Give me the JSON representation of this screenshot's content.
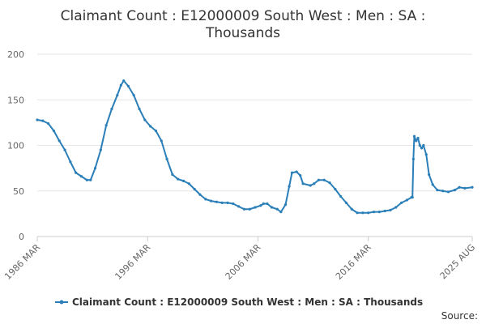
{
  "chart_data": {
    "type": "line",
    "title_lines": [
      "Claimant Count : E12000009 South West : Men : SA :",
      "Thousands"
    ],
    "ylim": [
      0,
      200
    ],
    "yticks": [
      0,
      50,
      100,
      150,
      200
    ],
    "x_range": [
      "1986-03",
      "2025-08"
    ],
    "xticks": [
      {
        "date": "1986-03",
        "label": "1986 MAR"
      },
      {
        "date": "1996-03",
        "label": "1996 MAR"
      },
      {
        "date": "2006-03",
        "label": "2006 MAR"
      },
      {
        "date": "2016-03",
        "label": "2016 MAR"
      },
      {
        "date": "2025-08",
        "label": "2025 AUG"
      }
    ],
    "grid": "horizontal",
    "legend_position": "bottom",
    "color": "#2b7fb8",
    "series": [
      {
        "name": "Claimant Count : E12000009 South West : Men : SA : Thousands",
        "points": [
          [
            "1986-03",
            128
          ],
          [
            "1986-09",
            127
          ],
          [
            "1987-03",
            124
          ],
          [
            "1987-09",
            116
          ],
          [
            "1988-03",
            105
          ],
          [
            "1988-09",
            95
          ],
          [
            "1989-03",
            82
          ],
          [
            "1989-09",
            70
          ],
          [
            "1990-03",
            66
          ],
          [
            "1990-09",
            62
          ],
          [
            "1991-01",
            62
          ],
          [
            "1991-06",
            75
          ],
          [
            "1991-12",
            95
          ],
          [
            "1992-06",
            122
          ],
          [
            "1992-12",
            140
          ],
          [
            "1993-06",
            155
          ],
          [
            "1993-10",
            166
          ],
          [
            "1994-01",
            171
          ],
          [
            "1994-06",
            165
          ],
          [
            "1994-12",
            155
          ],
          [
            "1995-06",
            140
          ],
          [
            "1995-12",
            128
          ],
          [
            "1996-06",
            121
          ],
          [
            "1996-12",
            116
          ],
          [
            "1997-06",
            105
          ],
          [
            "1997-12",
            85
          ],
          [
            "1998-06",
            68
          ],
          [
            "1998-12",
            63
          ],
          [
            "1999-06",
            61
          ],
          [
            "1999-12",
            58
          ],
          [
            "2000-06",
            52
          ],
          [
            "2000-12",
            46
          ],
          [
            "2001-06",
            41
          ],
          [
            "2001-12",
            39
          ],
          [
            "2002-06",
            38
          ],
          [
            "2002-12",
            37
          ],
          [
            "2003-06",
            37
          ],
          [
            "2003-12",
            36
          ],
          [
            "2004-06",
            33
          ],
          [
            "2004-12",
            30
          ],
          [
            "2005-06",
            30
          ],
          [
            "2005-12",
            32
          ],
          [
            "2006-06",
            34
          ],
          [
            "2006-09",
            36
          ],
          [
            "2007-01",
            36
          ],
          [
            "2007-06",
            32
          ],
          [
            "2007-12",
            30
          ],
          [
            "2008-04",
            27
          ],
          [
            "2008-09",
            35
          ],
          [
            "2009-01",
            55
          ],
          [
            "2009-04",
            70
          ],
          [
            "2009-09",
            71
          ],
          [
            "2010-01",
            67
          ],
          [
            "2010-04",
            58
          ],
          [
            "2010-12",
            56
          ],
          [
            "2011-04",
            58
          ],
          [
            "2011-09",
            62
          ],
          [
            "2012-03",
            62
          ],
          [
            "2012-09",
            59
          ],
          [
            "2013-03",
            52
          ],
          [
            "2013-09",
            44
          ],
          [
            "2014-03",
            37
          ],
          [
            "2014-09",
            30
          ],
          [
            "2015-03",
            26
          ],
          [
            "2015-09",
            26
          ],
          [
            "2016-03",
            26
          ],
          [
            "2016-09",
            27
          ],
          [
            "2017-03",
            27
          ],
          [
            "2017-09",
            28
          ],
          [
            "2018-03",
            29
          ],
          [
            "2018-09",
            32
          ],
          [
            "2019-03",
            37
          ],
          [
            "2019-09",
            40
          ],
          [
            "2020-02",
            43
          ],
          [
            "2020-03",
            43
          ],
          [
            "2020-04",
            85
          ],
          [
            "2020-05",
            110
          ],
          [
            "2020-07",
            105
          ],
          [
            "2020-09",
            108
          ],
          [
            "2020-11",
            100
          ],
          [
            "2021-01",
            97
          ],
          [
            "2021-03",
            100
          ],
          [
            "2021-06",
            90
          ],
          [
            "2021-09",
            68
          ],
          [
            "2022-01",
            57
          ],
          [
            "2022-06",
            51
          ],
          [
            "2022-12",
            50
          ],
          [
            "2023-06",
            49
          ],
          [
            "2024-01",
            51
          ],
          [
            "2024-06",
            54
          ],
          [
            "2024-12",
            53
          ],
          [
            "2025-08",
            54
          ]
        ]
      }
    ]
  },
  "source_label": "Source:"
}
